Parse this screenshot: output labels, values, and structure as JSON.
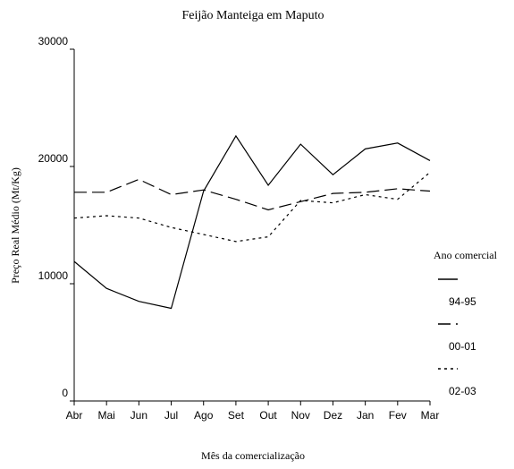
{
  "chart_data": {
    "type": "line",
    "title": "Feijão Manteiga em Maputo",
    "x_label": "Mês da comercialização",
    "y_label": "Preço Real Médio (Mt/Kg)",
    "legend_title": "Ano comercial",
    "categories": [
      "Abr",
      "Mai",
      "Jun",
      "Jul",
      "Ago",
      "Set",
      "Out",
      "Nov",
      "Dez",
      "Jan",
      "Fev",
      "Mar"
    ],
    "series": [
      {
        "name": "94-95",
        "color": "#000000",
        "dash": "solid",
        "values": [
          11900,
          9600,
          8500,
          7900,
          17900,
          22600,
          18400,
          21900,
          19300,
          21500,
          22000,
          20500
        ]
      },
      {
        "name": "00-01",
        "color": "#000000",
        "dash": "dashed",
        "values": [
          17800,
          17800,
          18900,
          17600,
          18000,
          17200,
          16300,
          17000,
          17700,
          17800,
          18100,
          17900
        ]
      },
      {
        "name": "02-03",
        "color": "#000000",
        "dash": "dotted",
        "values": [
          15600,
          15800,
          15600,
          14800,
          14200,
          13600,
          14000,
          17100,
          16900,
          17600,
          17200,
          19500
        ]
      }
    ],
    "ylim": [
      0,
      30000
    ],
    "yticks": [
      0,
      10000,
      20000,
      30000
    ],
    "grid": false,
    "legend": "right"
  }
}
